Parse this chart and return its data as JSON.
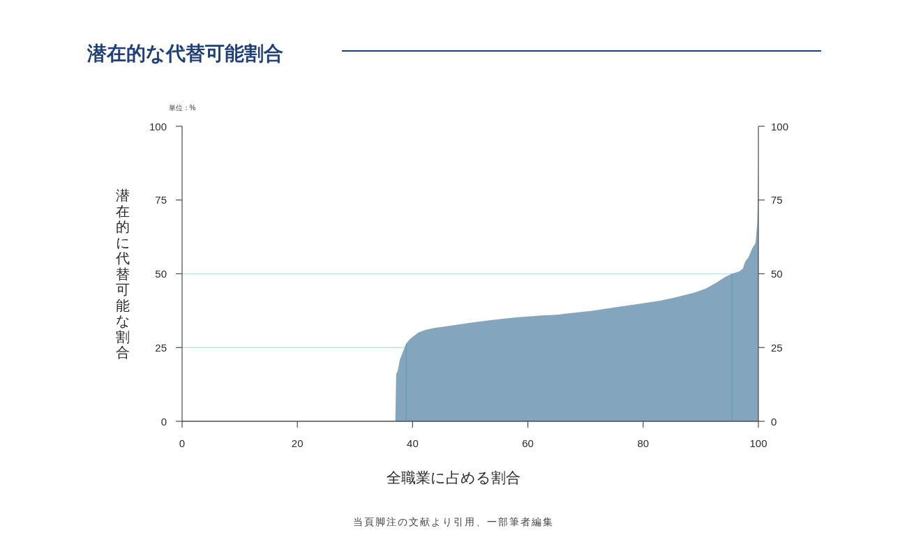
{
  "chart_data": {
    "type": "area",
    "title": "潜在的な代替可能割合",
    "xlabel": "全職業に占める割合",
    "ylabel": "潜在的に代替可能な割合",
    "annotations": [
      "単位：%",
      "当頁脚注の文献より引用、一部筆者編集"
    ],
    "series": [
      {
        "color": "#84a5be",
        "x": [
          0,
          37.0,
          37.15,
          37.4,
          37.8,
          38.2,
          38.6,
          38.95,
          39.4,
          40.2,
          41.0,
          42.3,
          43.9,
          45.9,
          50,
          54,
          58,
          62,
          65,
          67,
          71,
          75,
          79,
          83,
          85.4,
          87,
          89,
          91,
          92.7,
          94.3,
          95.4,
          96.7,
          97.3,
          97.7,
          98.3,
          98.9,
          99.5,
          99.8,
          99.9,
          100
        ],
        "values": [
          0,
          0,
          16,
          17,
          21,
          23,
          25,
          26.5,
          27.6,
          28.9,
          30.1,
          31,
          31.7,
          32.2,
          33.4,
          34.4,
          35.2,
          35.8,
          36.1,
          36.6,
          37.4,
          38.6,
          39.7,
          40.9,
          41.9,
          42.7,
          43.7,
          45.1,
          47,
          49,
          50,
          50.8,
          51.8,
          54.1,
          55.7,
          58.5,
          60.4,
          67,
          75,
          90
        ]
      }
    ],
    "xlim": [
      0,
      100
    ],
    "xticks": [
      0,
      20,
      40,
      60,
      80,
      100
    ],
    "ylim": [
      0,
      100
    ],
    "yticks": [
      0,
      25,
      50,
      75,
      100
    ],
    "y2lim": [
      0,
      100
    ],
    "y2ticks": [
      0,
      25,
      50,
      75,
      100
    ],
    "ref_lines": [
      {
        "axis": "y",
        "value": 25,
        "color": "#bde6de"
      },
      {
        "axis": "y",
        "value": 50,
        "color": "#bde6de"
      },
      {
        "axis": "x",
        "value": 38.9,
        "color": "#5f9fa9"
      },
      {
        "axis": "x",
        "value": 95.4,
        "color": "#5f9fa9"
      }
    ]
  }
}
